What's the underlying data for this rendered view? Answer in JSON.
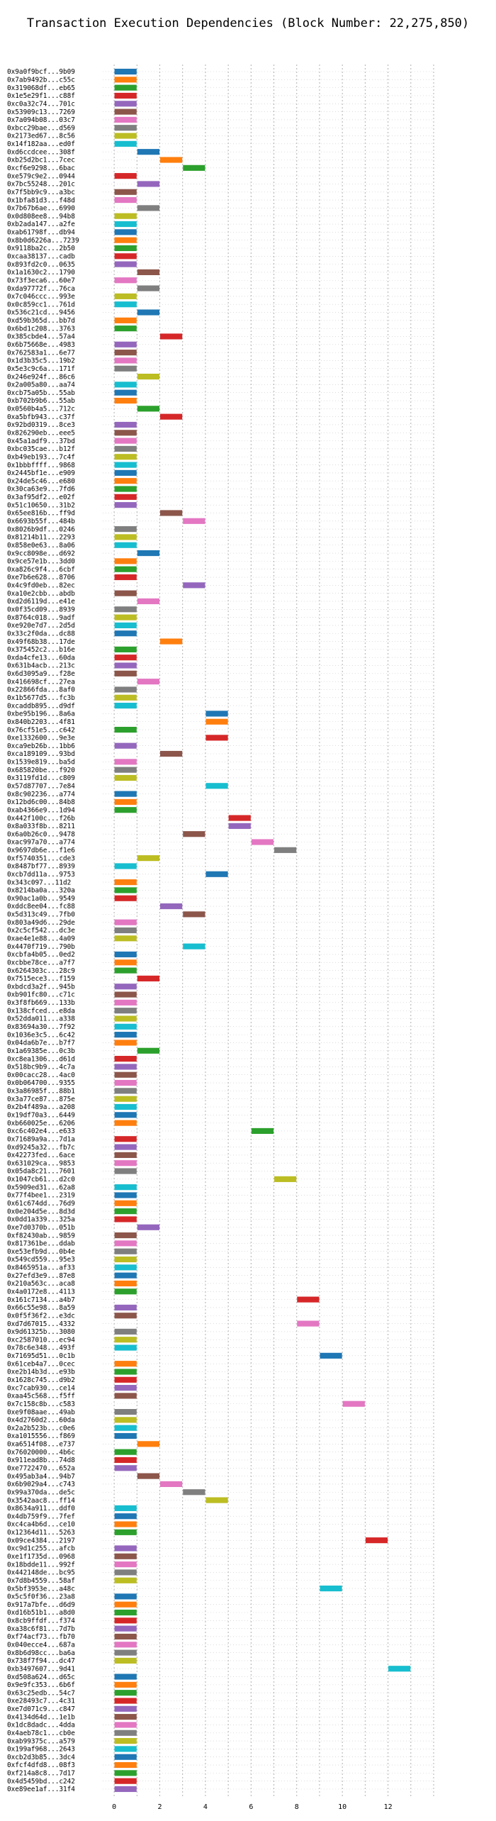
{
  "chart_data": {
    "type": "bar",
    "orientation": "horizontal",
    "title": "Transaction Execution Dependencies (Block Number: 22,275,850)",
    "xlabel": "",
    "ylabel": "",
    "xlim": [
      -0.5,
      14
    ],
    "xticks": [
      0,
      2,
      4,
      6,
      8,
      10,
      12
    ],
    "grid": true,
    "bar_length": 1,
    "palette": [
      "#1f77b4",
      "#ff7f0e",
      "#2ca02c",
      "#d62728",
      "#9467bd",
      "#8c564b",
      "#e377c2",
      "#7f7f7f",
      "#bcbd22",
      "#17becf"
    ],
    "categories": [
      "0x9a0f9bcf...9b09",
      "0x7ab9492b...c55c",
      "0x319068df...eb65",
      "0x1e5e29f1...c88f",
      "0xc0a32c74...701c",
      "0x53909c13...7269",
      "0x7a094b08...03c7",
      "0xbcc29bae...d569",
      "0x2173ed67...8c56",
      "0x14f182aa...ed0f",
      "0xd6ccdcee...308f",
      "0xb25d2bc1...7cec",
      "0xcf6e9298...6bac",
      "0xe579c9e2...0944",
      "0x7bc55248...201c",
      "0x7f5bb9c9...a3bc",
      "0x1bfa81d3...f48d",
      "0x7b67b6ae...6990",
      "0x0d808ee8...94b8",
      "0xb2ada147...a2fe",
      "0xab61798f...db94",
      "0x8b0d6226a...7239",
      "0x9118ba2c...2b50",
      "0xcaa38137...cadb",
      "0x893fd2c0...0635",
      "0x1a1630c2...1790",
      "0x73f3eca6...60e7",
      "0xda97772f...76ca",
      "0x7c046ccc...993e",
      "0x0c859cc1...761d",
      "0x536c21cd...9456",
      "0xd59b365d...bb7d",
      "0x6bd1c208...3763",
      "0x385cbde4...57a4",
      "0x6b75668e...4983",
      "0x762583a1...6e77",
      "0x1d3b35c5...19b2",
      "0x5e3c9c6a...171f",
      "0x246e924f...86c6",
      "0x2a005a80...aa74",
      "0xcb75a05b...55ab",
      "0xb702b9b6...55ab",
      "0x0560b4a5...712c",
      "0xa5bfb943...c37f",
      "0x92bd0319...8ce3",
      "0x826290eb...eee5",
      "0x45a1adf9...37bd",
      "0xbc035cae...b12f",
      "0xb49eb193...7c4f",
      "0x1bbbffff...9868",
      "0x2445bf1e...e909",
      "0x24de5c46...e680",
      "0x30ca63e9...7fd6",
      "0x3af95df2...e02f",
      "0x51c10650...31b2",
      "0x65ee816b...ff9d",
      "0x6693b55f...484b",
      "0x8026b9df...0246",
      "0x81214b11...2293",
      "0x858e0e63...8a06",
      "0x9cc8098e...d692",
      "0x9ce57e1b...3dd0",
      "0xa826c9f4...6cbf",
      "0xe7b6e628...8706",
      "0x4c9fd0eb...82ec",
      "0xa10e2cbb...abdb",
      "0xd2d6119d...e41e",
      "0x0f35cd09...8939",
      "0x8764c018...9adf",
      "0xe920e7d7...2d5d",
      "0x33c2f0da...dc88",
      "0x49f68b38...17de",
      "0x375452c2...b16e",
      "0xda4cfe13...60da",
      "0x631b4acb...213c",
      "0x6d3095a9...f28e",
      "0x416698cf...27ea",
      "0x22866fda...8af0",
      "0x1b5677d5...fc3b",
      "0xcaddb895...d9df",
      "0xbe95b196...8a6a",
      "0x840b2203...4f81",
      "0x76cf51e5...c642",
      "0xe1332600...9e3e",
      "0xca9eb26b...1bb6",
      "0xca189109...93bd",
      "0x1539e819...ba5d",
      "0x685820be...f920",
      "0x3119fd1d...c809",
      "0x57d87707...7e84",
      "0x8c902236...a774",
      "0x12bd6c00...84b8",
      "0xab4366e9...1d94",
      "0x442f100c...f26b",
      "0x8a033f8b...8211",
      "0x6a0b26c0...9478",
      "0xac997a70...a774",
      "0x9697db6e...f1e6",
      "0xf5740351...cde3",
      "0x8487bf77...8939",
      "0xcb7dd11a...9753",
      "0x343c097...11d2",
      "0x8214ba0a...320a",
      "0x90ac1a0b...9549",
      "0xddc8ee04...fc88",
      "0x5d313c49...7fb0",
      "0x803a49d6...29de",
      "0x2c5cf542...dc3e",
      "0xae4e1e88...4a09",
      "0x4470f719...790b",
      "0xcbfa4b05...0ed2",
      "0xcbbe78ce...a7f7",
      "0x6264303c...28c9",
      "0x7515ece3...f159",
      "0xbdcd3a2f...945b",
      "0xb901fc80...c71c",
      "0x3f8fb669...133b",
      "0x138cfced...e8da",
      "0x52dda011...a338",
      "0x83694a30...7f92",
      "0x1036e3c5...6c42",
      "0x04da6b7e...b7f7",
      "0x1a69385e...0c3b",
      "0xc8ea1306...d61d",
      "0x518bc9b9...4c7a",
      "0x00cacc28...4ac0",
      "0x0b064700...9355",
      "0x3a86985f...88b1",
      "0x3a77ce87...875e",
      "0x2b4f489a...a208",
      "0x19df70a3...6449",
      "0xb660025e...6206",
      "0xc6c402e4...e633",
      "0x71689a9a...7d1a",
      "0xd9245a32...fb7c",
      "0x42273fed...6ace",
      "0x631029ca...9853",
      "0x05da8c21...7601",
      "0x1047cb61...d2c0",
      "0x5909ed31...62a8",
      "0x77f4bee1...2319",
      "0x61c674dd...76d9",
      "0x0e204d5e...8d3d",
      "0x0dd1a339...325a",
      "0xe7d0370b...051b",
      "0xf82430ab...9859",
      "0x817361be...ddab",
      "0xe53efb9d...0b4e",
      "0x549cd559...95e3",
      "0x8465951a...af33",
      "0x27efd3e9...87e8",
      "0x210a563c...aca8",
      "0x4a0172e8...4113",
      "0x161c7134...a4b7",
      "0x66c55e98...8a59",
      "0x0f5f36f2...e3dc",
      "0xd7d67015...4332",
      "0x9d61325b...3080",
      "0xc2587010...ec94",
      "0x78c6e348...493f",
      "0x71695d51...0c1b",
      "0x61ceb4a7...0cec",
      "0xe2b14b3d...e93b",
      "0x1628c745...d9b2",
      "0xc7cab930...ce14",
      "0xaa45c568...f5ff",
      "0x7c158c8b...c583",
      "0xe9f08aae...49ab",
      "0x4d2760d2...60da",
      "0x2a2b523b...c0e6",
      "0xa1015556...f869",
      "0xa6514f08...e737",
      "0x76020000...4b6c",
      "0x911ead8b...74d8",
      "0xe7722470...652a",
      "0x495ab3a4...94b7",
      "0x6b9029a4...c743",
      "0x99a370da...de5c",
      "0x3542aac8...ff14",
      "0x8634a911...ddf0",
      "0x4db759f9...7fef",
      "0xc4ca4b6d...ce10",
      "0x12364d11...5263",
      "0x09ce4384...2197",
      "0xc9d1c255...afcb",
      "0xe1f1735d...0968",
      "0x18bdde11...992f",
      "0x442148de...bc95",
      "0x7d8b4559...58af",
      "0x5bf3953e...a48c",
      "0x5c5f0f36...23a8",
      "0x917a7bfe...d6d9",
      "0xd16b51b1...a8d0",
      "0x8cb9ffdf...f374",
      "0xa38c6f81...7d7b",
      "0xf74acf73...fb70",
      "0x040ecce4...687a",
      "0x8b6d98cc...ba6a",
      "0x738f7f94...dc47",
      "0xb3497607...9d41",
      "0xd508a624...d65c",
      "0x9e9fc353...6b6f",
      "0x63c25edb...54c7",
      "0xe28493c7...4c31",
      "0xe7d071c9...c847",
      "0x4134d64d...1e1b",
      "0x1dc8dadc...4dda",
      "0x4aeb78c1...cb0e",
      "0xab99375c...a579",
      "0x199af968...2643",
      "0xcb2d3b85...3dc4",
      "0xfcf4dfd8...08f3",
      "0xf214a8c8...7d17",
      "0x4d5459bd...c242",
      "0xe89ee1af...31f4"
    ],
    "start": [
      0,
      0,
      0,
      0,
      0,
      0,
      0,
      0,
      0,
      0,
      1,
      2,
      3,
      0,
      1,
      0,
      0,
      1,
      0,
      0,
      0,
      0,
      0,
      0,
      0,
      1,
      0,
      1,
      0,
      0,
      1,
      0,
      0,
      2,
      0,
      0,
      0,
      0,
      1,
      0,
      0,
      0,
      1,
      2,
      0,
      0,
      0,
      0,
      0,
      0,
      0,
      0,
      0,
      0,
      0,
      2,
      3,
      0,
      0,
      0,
      1,
      0,
      0,
      0,
      3,
      0,
      1,
      0,
      0,
      0,
      0,
      2,
      0,
      0,
      0,
      0,
      1,
      0,
      0,
      0,
      4,
      4,
      0,
      4,
      0,
      2,
      0,
      0,
      0,
      4,
      0,
      0,
      0,
      5,
      5,
      3,
      6,
      7,
      1,
      0,
      4,
      0,
      0,
      0,
      2,
      3,
      0,
      0,
      0,
      3,
      0,
      0,
      0,
      1,
      0,
      0,
      0,
      0,
      0,
      0,
      0,
      0,
      1,
      0,
      0,
      0,
      0,
      0,
      0,
      0,
      0,
      0,
      6,
      0,
      0,
      0,
      0,
      0,
      7,
      0,
      0,
      0,
      0,
      0,
      1,
      0,
      0,
      0,
      0,
      0,
      0,
      0,
      0,
      8,
      0,
      0,
      8,
      0,
      0,
      0,
      9,
      0,
      0,
      0,
      0,
      0,
      10,
      0,
      0,
      0,
      0,
      1,
      0,
      0,
      0,
      1,
      2,
      3,
      4,
      0,
      0,
      0,
      0,
      11,
      0,
      0,
      0,
      0,
      0,
      9,
      0,
      0,
      0,
      0,
      0,
      0,
      0,
      0,
      0,
      12,
      0,
      0,
      0,
      0,
      0,
      0,
      0,
      0,
      0,
      0,
      0,
      0,
      0,
      0,
      0
    ],
    "end": [
      1,
      1,
      1,
      1,
      1,
      1,
      1,
      1,
      1,
      1,
      2,
      3,
      4,
      1,
      2,
      1,
      1,
      2,
      1,
      1,
      1,
      1,
      1,
      1,
      1,
      2,
      1,
      2,
      1,
      1,
      2,
      1,
      1,
      3,
      1,
      1,
      1,
      1,
      2,
      1,
      1,
      1,
      2,
      3,
      1,
      1,
      1,
      1,
      1,
      1,
      1,
      1,
      1,
      1,
      1,
      3,
      4,
      1,
      1,
      1,
      2,
      1,
      1,
      1,
      4,
      1,
      2,
      1,
      1,
      1,
      1,
      3,
      1,
      1,
      1,
      1,
      2,
      1,
      1,
      1,
      5,
      5,
      1,
      5,
      1,
      3,
      1,
      1,
      1,
      5,
      1,
      1,
      1,
      6,
      6,
      4,
      7,
      8,
      2,
      1,
      5,
      1,
      1,
      1,
      3,
      4,
      1,
      1,
      1,
      4,
      1,
      1,
      1,
      2,
      1,
      1,
      1,
      1,
      1,
      1,
      1,
      1,
      2,
      1,
      1,
      1,
      1,
      1,
      1,
      1,
      1,
      1,
      7,
      1,
      1,
      1,
      1,
      1,
      8,
      1,
      1,
      1,
      1,
      1,
      2,
      1,
      1,
      1,
      1,
      1,
      1,
      1,
      1,
      9,
      1,
      1,
      9,
      1,
      1,
      1,
      10,
      1,
      1,
      1,
      1,
      1,
      11,
      1,
      1,
      1,
      1,
      2,
      1,
      1,
      1,
      2,
      3,
      4,
      5,
      1,
      1,
      1,
      1,
      12,
      1,
      1,
      1,
      1,
      1,
      10,
      1,
      1,
      1,
      1,
      1,
      1,
      1,
      1,
      1,
      13,
      1,
      1,
      1,
      1,
      1,
      1,
      1,
      1,
      1,
      1,
      1,
      1,
      1,
      1,
      1
    ]
  }
}
